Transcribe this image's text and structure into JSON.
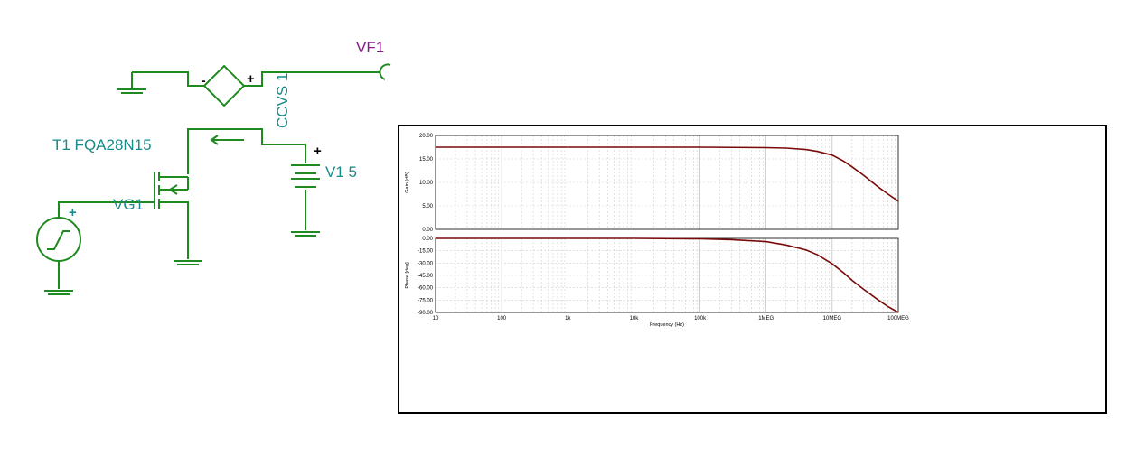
{
  "schematic": {
    "labels": {
      "vf1": "VF1",
      "ccvs": "CCVS 1",
      "t1": "T1 FQA28N15",
      "v1": "V1 5",
      "vg1": "VG1",
      "plus_ccvs": "+",
      "minus_ccvs": "-",
      "plus_v1": "+",
      "plus_vg1": "+"
    },
    "colors": {
      "wire": "#1f8a1f",
      "label": "#1a8a8a",
      "probe_label": "#8b1a8b",
      "source": "#1f8a1f"
    }
  },
  "chart_data": [
    {
      "type": "line",
      "panel": "gain",
      "ylabel": "Gain (dB)",
      "xscale": "log",
      "xlim": [
        10,
        100000000
      ],
      "ylim": [
        0,
        20
      ],
      "yticks": [
        "0.00",
        "5.00",
        "10.00",
        "15.00",
        "20.00"
      ],
      "ytick_values": [
        0,
        5,
        10,
        15,
        20
      ],
      "grid": true,
      "line_color": "#7a0a0a",
      "x": [
        10,
        100,
        1000,
        10000,
        100000,
        1000000,
        2000000,
        4000000,
        6000000,
        10000000,
        15000000,
        20000000,
        30000000,
        50000000,
        70000000,
        100000000
      ],
      "y": [
        17.5,
        17.5,
        17.5,
        17.5,
        17.5,
        17.4,
        17.3,
        17.0,
        16.6,
        15.8,
        14.5,
        13.3,
        11.5,
        9.0,
        7.5,
        6.0
      ]
    },
    {
      "type": "line",
      "panel": "phase",
      "ylabel": "Phase [deg]",
      "xlabel": "Frequency (Hz)",
      "xscale": "log",
      "xlim": [
        10,
        100000000
      ],
      "ylim": [
        -90,
        0
      ],
      "yticks": [
        "0.00",
        "-15.00",
        "-30.00",
        "-45.00",
        "-60.00",
        "-75.00",
        "-90.00"
      ],
      "ytick_values": [
        0,
        -15,
        -30,
        -45,
        -60,
        -75,
        -90
      ],
      "xticks": [
        "10",
        "100",
        "1k",
        "10k",
        "100k",
        "1MEG",
        "10MEG",
        "100MEG"
      ],
      "xtick_values": [
        10,
        100,
        1000,
        10000,
        100000,
        1000000,
        10000000,
        100000000
      ],
      "grid": true,
      "line_color": "#7a0a0a",
      "x": [
        10,
        100,
        1000,
        10000,
        100000,
        300000,
        1000000,
        2000000,
        4000000,
        6000000,
        10000000,
        15000000,
        20000000,
        30000000,
        50000000,
        70000000,
        100000000
      ],
      "y": [
        0,
        0,
        0,
        0,
        -0.5,
        -1.5,
        -4,
        -8,
        -14,
        -20,
        -31,
        -42,
        -51,
        -62,
        -75,
        -83,
        -90
      ]
    }
  ]
}
